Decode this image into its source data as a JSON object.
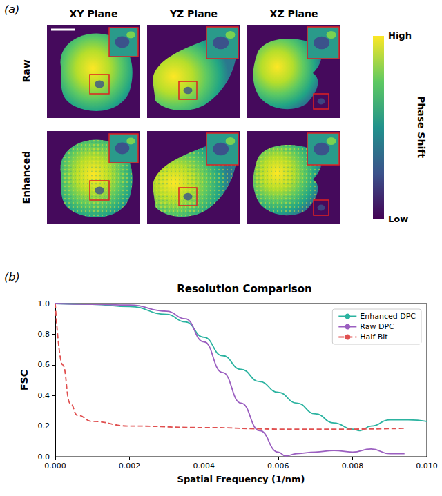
{
  "panel_a": {
    "label": "(a)",
    "columns": [
      "XY Plane",
      "YZ Plane",
      "XZ Plane"
    ],
    "rows": [
      "Raw",
      "Enhanced"
    ],
    "colorbar": {
      "title": "Phase Shift",
      "high": "High",
      "low": "Low"
    }
  },
  "chart_data": {
    "label": "(b)",
    "type": "line",
    "title": "Resolution Comparison",
    "x_label": "Spatial Frequency (1/nm)",
    "y_label": "FSC",
    "xlim": [
      0,
      0.01
    ],
    "xticks": [
      {
        "value": 0,
        "label": "0.000"
      },
      {
        "value": 0.002,
        "label": "0.002"
      },
      {
        "value": 0.004,
        "label": "0.004"
      },
      {
        "value": 0.006,
        "label": "0.006"
      },
      {
        "value": 0.008,
        "label": "0.008"
      },
      {
        "value": 0.01,
        "label": "0.010"
      }
    ],
    "ylim": [
      0,
      1
    ],
    "yticks": [
      {
        "value": 0,
        "label": "0.0"
      },
      0.2,
      0.4,
      0.6,
      0.8,
      {
        "value": 1,
        "label": "1.0"
      }
    ],
    "grid": false,
    "legend": "upper right",
    "series": [
      {
        "name": "Enhanced DPC",
        "color": "#2bb3a0",
        "line_style": "solid",
        "x": [
          0,
          0.001,
          0.002,
          0.003,
          0.0035,
          0.004,
          0.0045,
          0.005,
          0.0055,
          0.006,
          0.0065,
          0.007,
          0.0075,
          0.008,
          0.0082,
          0.0085,
          0.009,
          0.0095,
          0.01
        ],
        "values": [
          1.0,
          0.995,
          0.98,
          0.93,
          0.88,
          0.78,
          0.66,
          0.57,
          0.49,
          0.42,
          0.35,
          0.28,
          0.22,
          0.18,
          0.17,
          0.2,
          0.24,
          0.24,
          0.23
        ]
      },
      {
        "name": "Raw DPC",
        "color": "#9b5fc0",
        "line_style": "solid",
        "x": [
          0,
          0.001,
          0.002,
          0.003,
          0.0035,
          0.004,
          0.0045,
          0.005,
          0.0055,
          0.006,
          0.0062,
          0.0065,
          0.007,
          0.0075,
          0.008,
          0.0085,
          0.009,
          0.0094
        ],
        "values": [
          1.0,
          0.995,
          0.99,
          0.95,
          0.9,
          0.75,
          0.55,
          0.35,
          0.17,
          0.03,
          0.005,
          0.02,
          0.03,
          0.04,
          0.03,
          0.05,
          0.02,
          0.02
        ]
      },
      {
        "name": "Half Bit",
        "color": "#e05050",
        "line_style": "dashed",
        "x": [
          0,
          0.0002,
          0.0004,
          0.0006,
          0.001,
          0.002,
          0.004,
          0.006,
          0.008,
          0.0094
        ],
        "values": [
          1.0,
          0.6,
          0.35,
          0.27,
          0.23,
          0.2,
          0.19,
          0.18,
          0.18,
          0.185
        ]
      }
    ]
  }
}
